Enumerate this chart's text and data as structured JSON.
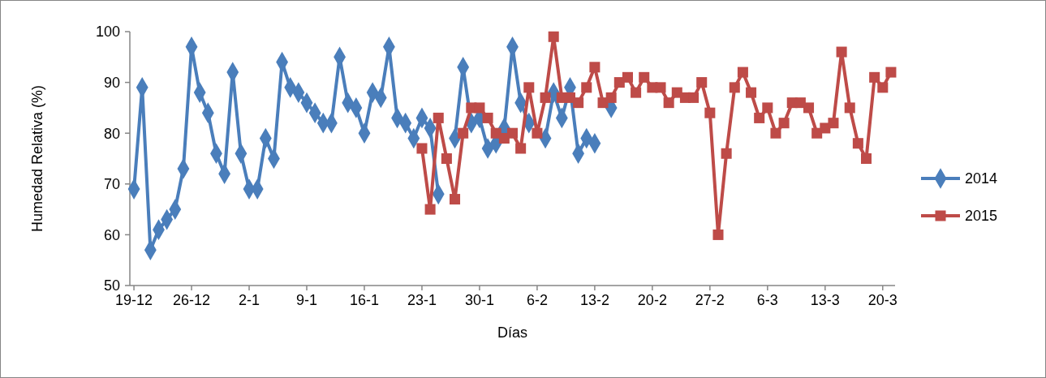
{
  "chart_data": {
    "type": "line",
    "xlabel": "Días",
    "ylabel": "Humedad Relativa (%)",
    "categories": [
      "19-12",
      null,
      null,
      null,
      null,
      null,
      null,
      "26-12",
      null,
      null,
      null,
      null,
      null,
      null,
      "2-1",
      null,
      null,
      null,
      null,
      null,
      null,
      "9-1",
      null,
      null,
      null,
      null,
      null,
      null,
      "16-1",
      null,
      null,
      null,
      null,
      null,
      null,
      "23-1",
      null,
      null,
      null,
      null,
      null,
      null,
      "30-1",
      null,
      null,
      null,
      null,
      null,
      null,
      "6-2",
      null,
      null,
      null,
      null,
      null,
      null,
      "13-2",
      null,
      null,
      null,
      null,
      null,
      null,
      "20-2",
      null,
      null,
      null,
      null,
      null,
      null,
      "27-2",
      null,
      null,
      null,
      null,
      null,
      null,
      "6-3",
      null,
      null,
      null,
      null,
      null,
      null,
      "13-3",
      null,
      null,
      null,
      null,
      null,
      null,
      "20-3",
      null
    ],
    "ylim": [
      50,
      100
    ],
    "yticks": [
      50,
      60,
      70,
      80,
      90,
      100
    ],
    "grid": false,
    "legend": "right",
    "line_style": "solid",
    "series": [
      {
        "name": "2014",
        "color": "#4a7ebb",
        "marker": "diamond",
        "values": [
          69,
          89,
          57,
          61,
          63,
          65,
          73,
          97,
          88,
          84,
          76,
          72,
          92,
          76,
          69,
          69,
          79,
          75,
          94,
          89,
          88,
          86,
          84,
          82,
          82,
          95,
          86,
          85,
          80,
          88,
          87,
          97,
          83,
          82,
          79,
          83,
          81,
          68,
          null,
          79,
          93,
          82,
          83,
          77,
          78,
          81,
          97,
          86,
          82,
          null,
          79,
          88,
          83,
          89,
          76,
          79,
          78,
          null,
          85,
          null,
          null,
          null,
          null,
          null,
          null,
          null,
          null,
          null,
          null,
          null,
          null,
          null,
          null,
          null,
          null,
          null,
          null,
          null,
          null,
          null,
          null,
          null,
          null,
          null,
          null,
          null,
          null,
          null,
          null,
          null,
          null,
          null,
          null
        ]
      },
      {
        "name": "2015",
        "color": "#be4b48",
        "marker": "square",
        "values": [
          null,
          null,
          null,
          null,
          null,
          null,
          null,
          null,
          null,
          null,
          null,
          null,
          null,
          null,
          null,
          null,
          null,
          null,
          null,
          null,
          null,
          null,
          null,
          null,
          null,
          null,
          null,
          null,
          null,
          null,
          null,
          null,
          null,
          null,
          null,
          77,
          65,
          83,
          75,
          67,
          80,
          85,
          85,
          83,
          80,
          79,
          80,
          77,
          89,
          80,
          87,
          99,
          87,
          87,
          86,
          89,
          93,
          86,
          87,
          90,
          91,
          88,
          91,
          89,
          89,
          86,
          88,
          87,
          87,
          90,
          84,
          60,
          76,
          89,
          92,
          88,
          83,
          85,
          80,
          82,
          86,
          86,
          85,
          80,
          81,
          82,
          96,
          85,
          78,
          75,
          91,
          89,
          92
        ]
      }
    ]
  }
}
